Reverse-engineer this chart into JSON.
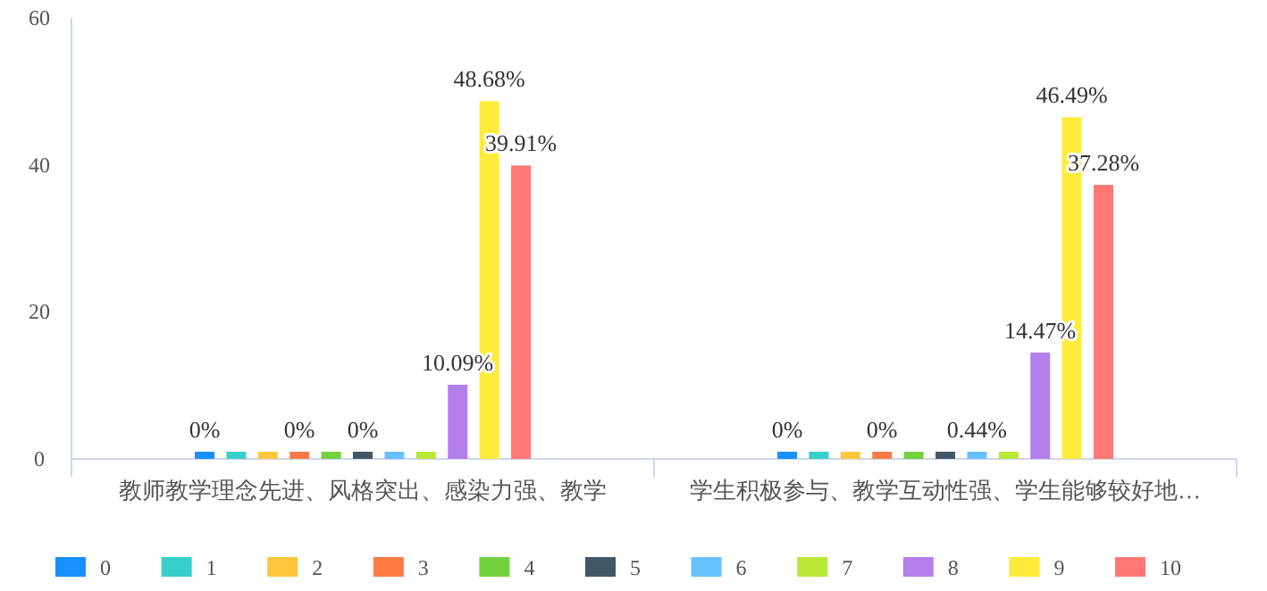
{
  "chart_data": {
    "type": "bar",
    "categories": [
      "教师教学理念先进、风格突出、感染力强、教学",
      "学生积极参与、教学互动性强、学生能够较好地…"
    ],
    "ylim": [
      0,
      60
    ],
    "yticks": [
      0,
      20,
      40,
      60
    ],
    "grid": false,
    "legend": "bottom",
    "series": [
      {
        "name": "0",
        "color": "#1890ff",
        "values": [
          0,
          0
        ],
        "value_labels": [
          "0%",
          "0%"
        ]
      },
      {
        "name": "1",
        "color": "#36cfc9",
        "values": [
          0,
          0
        ],
        "value_labels": [
          null,
          null
        ]
      },
      {
        "name": "2",
        "color": "#ffc53d",
        "values": [
          0,
          0
        ],
        "value_labels": [
          null,
          null
        ]
      },
      {
        "name": "3",
        "color": "#ff7a45",
        "values": [
          0,
          0
        ],
        "value_labels": [
          "0%",
          "0%"
        ]
      },
      {
        "name": "4",
        "color": "#73d13d",
        "values": [
          0,
          0
        ],
        "value_labels": [
          null,
          null
        ]
      },
      {
        "name": "5",
        "color": "#435764",
        "values": [
          0,
          0
        ],
        "value_labels": [
          "0%",
          null
        ]
      },
      {
        "name": "6",
        "color": "#69c0ff",
        "values": [
          0,
          0.44
        ],
        "value_labels": [
          null,
          "0.44%"
        ]
      },
      {
        "name": "7",
        "color": "#bae637",
        "values": [
          0,
          0
        ],
        "value_labels": [
          null,
          null
        ]
      },
      {
        "name": "8",
        "color": "#b37feb",
        "values": [
          10.09,
          14.47
        ],
        "value_labels": [
          "10.09%",
          "14.47%"
        ]
      },
      {
        "name": "9",
        "color": "#ffeb3b",
        "values": [
          48.68,
          46.49
        ],
        "value_labels": [
          "48.68%",
          "46.49%"
        ]
      },
      {
        "name": "10",
        "color": "#ff7875",
        "values": [
          39.91,
          37.28
        ],
        "value_labels": [
          "39.91%",
          "37.28%"
        ]
      }
    ]
  }
}
